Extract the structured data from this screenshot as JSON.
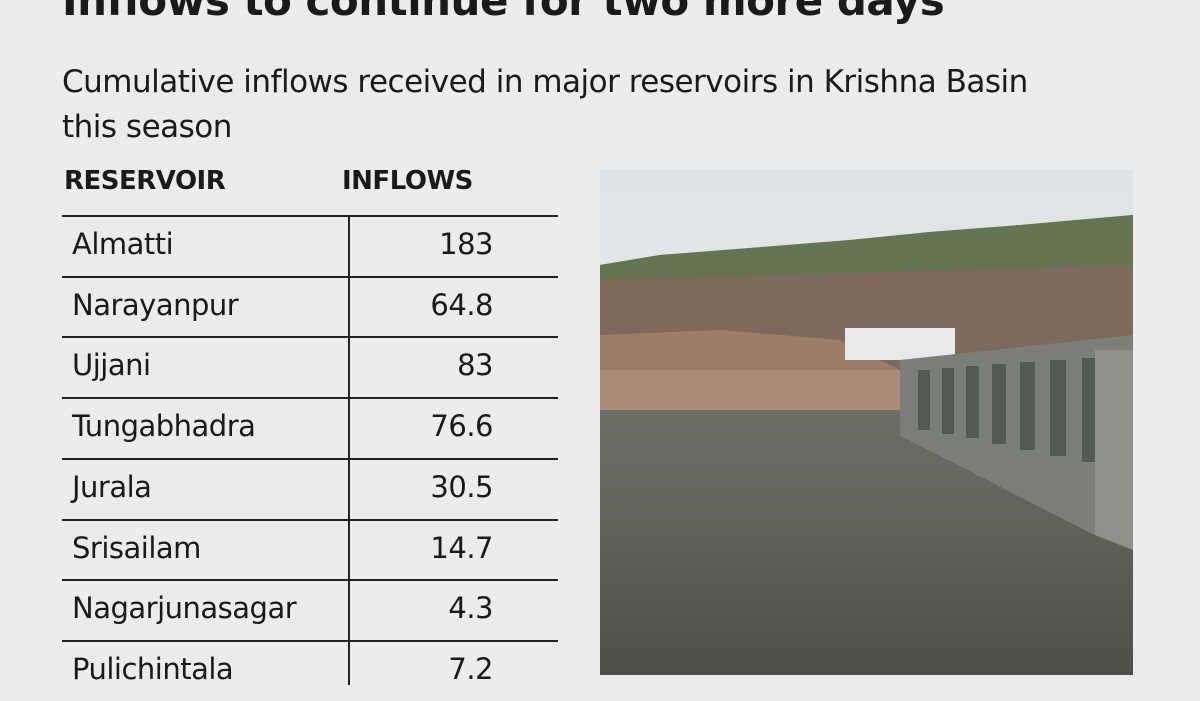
{
  "header": {
    "title": "Inflows to continue for two more days",
    "subtitle": "Cumulative inflows received in major reservoirs in Krishna Basin this season"
  },
  "table": {
    "columns": [
      "RESERVOIR",
      "INFLOWS"
    ],
    "rows": [
      [
        "Almatti",
        183
      ],
      [
        "Narayanpur",
        64.8
      ],
      [
        "Ujjani",
        83
      ],
      [
        "Tungabhadra",
        76.6
      ],
      [
        "Jurala",
        30.5
      ],
      [
        "Srisailam",
        14.7
      ],
      [
        "Nagarjunasagar",
        4.3
      ],
      [
        "Pulichintala",
        7.2
      ]
    ]
  }
}
